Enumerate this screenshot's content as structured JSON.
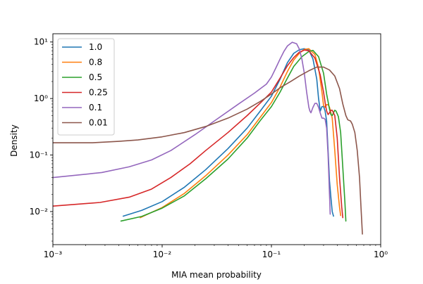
{
  "chart_data": {
    "type": "line",
    "xlabel": "MIA mean probability",
    "ylabel": "Density",
    "xscale": "log",
    "yscale": "log",
    "xlim": [
      0.001,
      1
    ],
    "ylim": [
      0.0026,
      14
    ],
    "grid": false,
    "legend_position": "top-left",
    "x_ticks": [
      0.001,
      0.01,
      0.1,
      1
    ],
    "x_tick_labels": [
      "10⁻³",
      "10⁻²",
      "10⁻¹",
      "10⁰"
    ],
    "y_ticks": [
      0.01,
      0.1,
      1,
      10
    ],
    "y_tick_labels": [
      "10⁻²",
      "10⁻¹",
      "10⁰",
      "10¹"
    ],
    "series": [
      {
        "name": "1.0",
        "color": "#1f77b4",
        "points": [
          [
            0.0044,
            0.0083
          ],
          [
            0.0065,
            0.0105
          ],
          [
            0.01,
            0.015
          ],
          [
            0.016,
            0.027
          ],
          [
            0.025,
            0.055
          ],
          [
            0.04,
            0.13
          ],
          [
            0.06,
            0.3
          ],
          [
            0.08,
            0.62
          ],
          [
            0.1,
            1.1
          ],
          [
            0.12,
            2.2
          ],
          [
            0.14,
            4.3
          ],
          [
            0.16,
            6.3
          ],
          [
            0.18,
            7.3
          ],
          [
            0.2,
            7.6
          ],
          [
            0.22,
            7.2
          ],
          [
            0.24,
            5.0
          ],
          [
            0.26,
            2.2
          ],
          [
            0.27,
            1.0
          ],
          [
            0.28,
            0.6
          ],
          [
            0.29,
            0.72
          ],
          [
            0.3,
            0.72
          ],
          [
            0.31,
            0.6
          ],
          [
            0.32,
            0.4
          ],
          [
            0.33,
            0.12
          ],
          [
            0.34,
            0.035
          ],
          [
            0.35,
            0.018
          ],
          [
            0.36,
            0.01
          ],
          [
            0.37,
            0.0083
          ]
        ]
      },
      {
        "name": "0.8",
        "color": "#ff7f0e",
        "points": [
          [
            0.0063,
            0.0078
          ],
          [
            0.01,
            0.0118
          ],
          [
            0.016,
            0.021
          ],
          [
            0.025,
            0.043
          ],
          [
            0.04,
            0.1
          ],
          [
            0.06,
            0.23
          ],
          [
            0.08,
            0.48
          ],
          [
            0.1,
            0.85
          ],
          [
            0.12,
            1.6
          ],
          [
            0.14,
            3.0
          ],
          [
            0.16,
            4.8
          ],
          [
            0.18,
            6.3
          ],
          [
            0.2,
            7.4
          ],
          [
            0.22,
            7.6
          ],
          [
            0.25,
            6.0
          ],
          [
            0.27,
            3.5
          ],
          [
            0.29,
            1.3
          ],
          [
            0.3,
            0.75
          ],
          [
            0.31,
            0.7
          ],
          [
            0.32,
            0.78
          ],
          [
            0.33,
            0.78
          ],
          [
            0.34,
            0.7
          ],
          [
            0.36,
            0.45
          ],
          [
            0.38,
            0.12
          ],
          [
            0.4,
            0.03
          ],
          [
            0.42,
            0.012
          ],
          [
            0.43,
            0.0085
          ]
        ]
      },
      {
        "name": "0.5",
        "color": "#2ca02c",
        "points": [
          [
            0.0042,
            0.0068
          ],
          [
            0.0065,
            0.0082
          ],
          [
            0.01,
            0.0115
          ],
          [
            0.016,
            0.019
          ],
          [
            0.025,
            0.038
          ],
          [
            0.04,
            0.085
          ],
          [
            0.06,
            0.2
          ],
          [
            0.08,
            0.42
          ],
          [
            0.1,
            0.72
          ],
          [
            0.12,
            1.3
          ],
          [
            0.14,
            2.3
          ],
          [
            0.16,
            3.7
          ],
          [
            0.19,
            5.5
          ],
          [
            0.22,
            6.8
          ],
          [
            0.24,
            7.1
          ],
          [
            0.27,
            5.5
          ],
          [
            0.3,
            2.8
          ],
          [
            0.32,
            1.2
          ],
          [
            0.34,
            0.65
          ],
          [
            0.35,
            0.52
          ],
          [
            0.36,
            0.5
          ],
          [
            0.37,
            0.56
          ],
          [
            0.38,
            0.62
          ],
          [
            0.39,
            0.6
          ],
          [
            0.41,
            0.48
          ],
          [
            0.43,
            0.25
          ],
          [
            0.45,
            0.06
          ],
          [
            0.47,
            0.015
          ],
          [
            0.48,
            0.0068
          ]
        ]
      },
      {
        "name": "0.25",
        "color": "#d62728",
        "points": [
          [
            0.001,
            0.0125
          ],
          [
            0.0027,
            0.0145
          ],
          [
            0.005,
            0.018
          ],
          [
            0.008,
            0.025
          ],
          [
            0.012,
            0.04
          ],
          [
            0.018,
            0.07
          ],
          [
            0.025,
            0.12
          ],
          [
            0.04,
            0.25
          ],
          [
            0.06,
            0.5
          ],
          [
            0.08,
            0.85
          ],
          [
            0.1,
            1.3
          ],
          [
            0.12,
            2.3
          ],
          [
            0.14,
            3.8
          ],
          [
            0.16,
            5.3
          ],
          [
            0.18,
            6.6
          ],
          [
            0.2,
            7.2
          ],
          [
            0.22,
            7.0
          ],
          [
            0.25,
            5.2
          ],
          [
            0.28,
            2.6
          ],
          [
            0.3,
            1.3
          ],
          [
            0.31,
            0.85
          ],
          [
            0.32,
            0.6
          ],
          [
            0.33,
            0.52
          ],
          [
            0.34,
            0.56
          ],
          [
            0.35,
            0.62
          ],
          [
            0.36,
            0.62
          ],
          [
            0.38,
            0.5
          ],
          [
            0.4,
            0.2
          ],
          [
            0.42,
            0.04
          ],
          [
            0.44,
            0.012
          ],
          [
            0.45,
            0.0078
          ]
        ]
      },
      {
        "name": "0.1",
        "color": "#9467bd",
        "points": [
          [
            0.001,
            0.04
          ],
          [
            0.0028,
            0.049
          ],
          [
            0.005,
            0.062
          ],
          [
            0.008,
            0.082
          ],
          [
            0.012,
            0.12
          ],
          [
            0.02,
            0.23
          ],
          [
            0.03,
            0.4
          ],
          [
            0.05,
            0.8
          ],
          [
            0.07,
            1.25
          ],
          [
            0.09,
            1.8
          ],
          [
            0.1,
            2.4
          ],
          [
            0.11,
            3.5
          ],
          [
            0.12,
            5.0
          ],
          [
            0.13,
            6.8
          ],
          [
            0.14,
            8.5
          ],
          [
            0.155,
            9.9
          ],
          [
            0.17,
            9.3
          ],
          [
            0.18,
            7.5
          ],
          [
            0.19,
            5.0
          ],
          [
            0.2,
            2.8
          ],
          [
            0.21,
            1.3
          ],
          [
            0.22,
            0.7
          ],
          [
            0.225,
            0.6
          ],
          [
            0.23,
            0.56
          ],
          [
            0.24,
            0.7
          ],
          [
            0.25,
            0.82
          ],
          [
            0.26,
            0.82
          ],
          [
            0.27,
            0.7
          ],
          [
            0.28,
            0.55
          ],
          [
            0.29,
            0.45
          ],
          [
            0.3,
            0.45
          ],
          [
            0.31,
            0.43
          ],
          [
            0.32,
            0.3
          ],
          [
            0.33,
            0.1
          ],
          [
            0.34,
            0.02
          ],
          [
            0.345,
            0.009
          ]
        ]
      },
      {
        "name": "0.01",
        "color": "#8c564b",
        "points": [
          [
            0.001,
            0.165
          ],
          [
            0.0023,
            0.165
          ],
          [
            0.004,
            0.175
          ],
          [
            0.006,
            0.185
          ],
          [
            0.01,
            0.21
          ],
          [
            0.016,
            0.25
          ],
          [
            0.025,
            0.32
          ],
          [
            0.04,
            0.45
          ],
          [
            0.06,
            0.65
          ],
          [
            0.08,
            0.9
          ],
          [
            0.1,
            1.2
          ],
          [
            0.12,
            1.55
          ],
          [
            0.15,
            2.0
          ],
          [
            0.18,
            2.5
          ],
          [
            0.22,
            3.1
          ],
          [
            0.26,
            3.6
          ],
          [
            0.3,
            3.6
          ],
          [
            0.34,
            3.2
          ],
          [
            0.38,
            2.5
          ],
          [
            0.42,
            1.5
          ],
          [
            0.45,
            0.8
          ],
          [
            0.48,
            0.5
          ],
          [
            0.5,
            0.42
          ],
          [
            0.53,
            0.4
          ],
          [
            0.55,
            0.35
          ],
          [
            0.58,
            0.25
          ],
          [
            0.61,
            0.12
          ],
          [
            0.64,
            0.04
          ],
          [
            0.66,
            0.012
          ],
          [
            0.68,
            0.004
          ]
        ]
      }
    ]
  }
}
